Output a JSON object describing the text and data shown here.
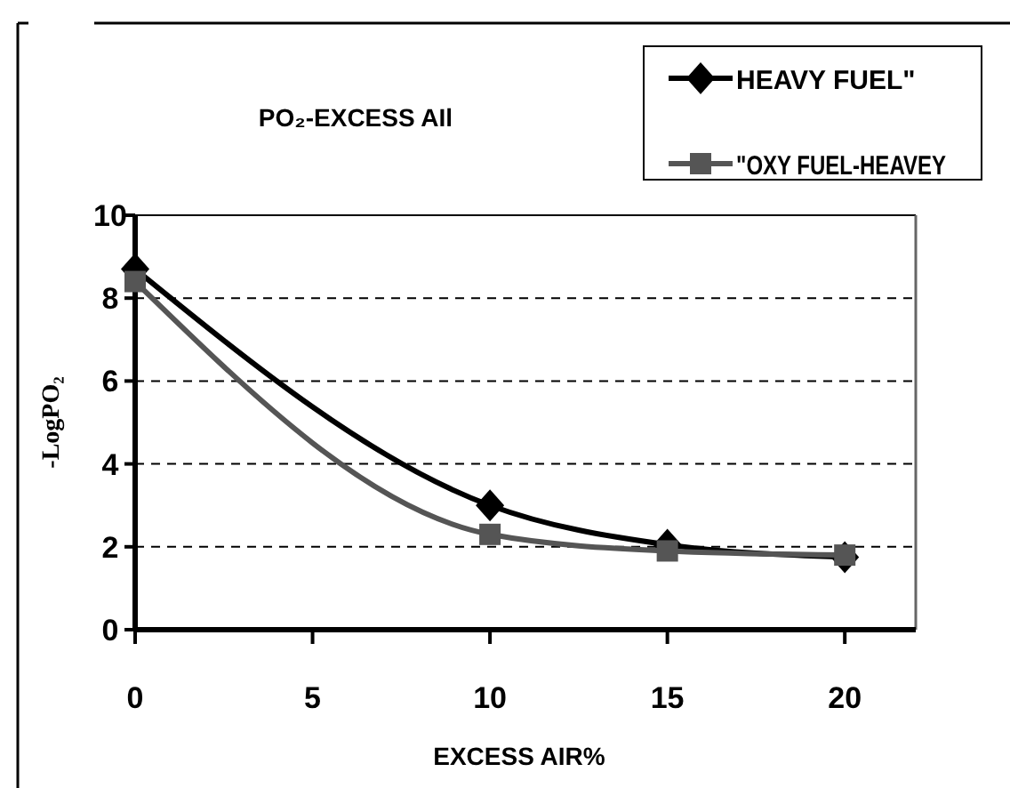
{
  "chart_data": {
    "type": "line",
    "title": "PO₂-EXCESS AIl",
    "xlabel": "EXCESS AIR%",
    "ylabel": "-LogPO₂",
    "x": [
      0,
      10,
      15,
      20
    ],
    "series": [
      {
        "name": "HEAVY FUEL\"",
        "color": "#000000",
        "marker": "diamond",
        "values": [
          8.7,
          3.0,
          2.05,
          1.75
        ]
      },
      {
        "name": "\"OXY FUEL-HEAVEY",
        "color": "#555555",
        "marker": "square",
        "values": [
          8.4,
          2.3,
          1.9,
          1.8
        ]
      }
    ],
    "xlim": [
      0,
      22
    ],
    "xticks": [
      0,
      5,
      10,
      15,
      20
    ],
    "ylim": [
      0,
      10
    ],
    "yticks": [
      0,
      2,
      4,
      6,
      8,
      10
    ],
    "grid": "y",
    "legend": "top right"
  }
}
